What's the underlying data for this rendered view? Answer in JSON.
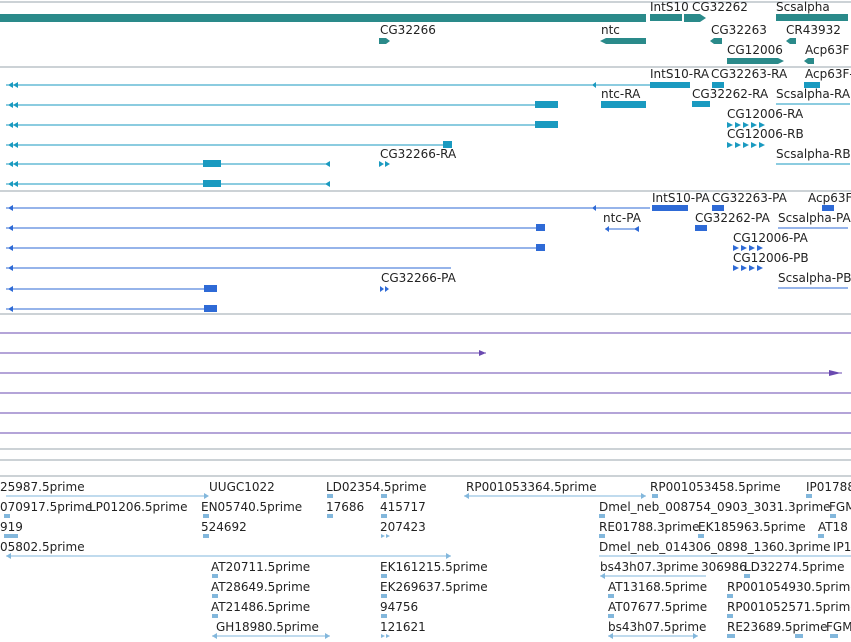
{
  "colors": {
    "gene": "#2a8a8a",
    "transcript": "#1a9ac0",
    "protein": "#2e6ad6",
    "feature": "#6a4ab0",
    "est": "#82b7dc",
    "separator": "#9aa4ae"
  },
  "genes": {
    "labels": [
      "IntS10",
      "CG32262",
      "Scsalpha",
      "CG32266",
      "ntc",
      "CG32263",
      "CR43932",
      "CG12006",
      "Acp63F"
    ]
  },
  "transcripts": {
    "labels": [
      "IntS10-RA",
      "CG32263-RA",
      "Acp63F-",
      "ntc-RA",
      "CG32262-RA",
      "Scsalpha-RA",
      "CG12006-RA",
      "CG12006-RB",
      "CG32266-RA",
      "Scsalpha-RB"
    ]
  },
  "proteins": {
    "labels": [
      "IntS10-PA",
      "CG32263-PA",
      "Acp63F",
      "ntc-PA",
      "CG32262-PA",
      "Scsalpha-PA",
      "CG12006-PA",
      "CG12006-PB",
      "CG32266-PA",
      "Scsalpha-PB"
    ]
  },
  "ests": {
    "labels": [
      "25987.5prime",
      "UUGC1022",
      "LD02354.5prime",
      "RP001053364.5prime",
      "RP001053458.5prime",
      "IP01788",
      "070917.5prime",
      "LP01206.5prime",
      "EN05740.5prime",
      "17686",
      "415717",
      "Dmel_neb_008754_0903_3031.3prime",
      "FGM",
      "919",
      "524692",
      "207423",
      "RE01788.3prime",
      "EK185963.5prime",
      "AT18",
      "05802.5prime",
      "Dmel_neb_014306_0898_1360.3prime",
      "IP1",
      "AT20711.5prime",
      "EK161215.5prime",
      "bs43h07.3prime",
      "306986",
      "LD32274.5prime",
      "AT28649.5prime",
      "EK269637.5prime",
      "AT13168.5prime",
      "RP001054930.5prime",
      "AT21486.5prime",
      "94756",
      "AT07677.5prime",
      "RP001052571.5prime",
      "GH18980.5prime",
      "121621",
      "bs43h07.5prime",
      "RE23689.5prime",
      "FGM"
    ]
  }
}
